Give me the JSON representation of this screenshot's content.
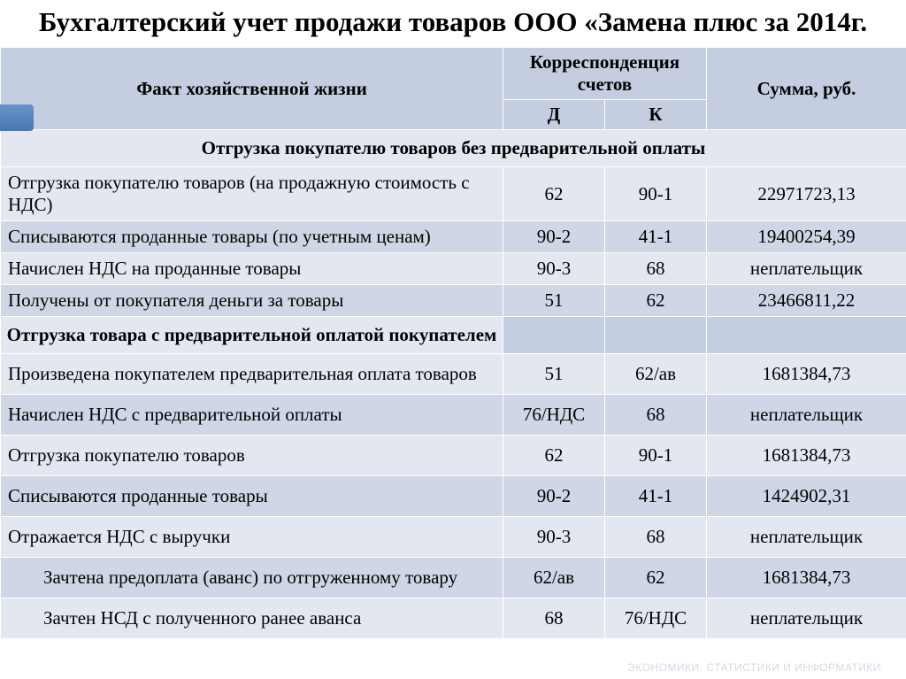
{
  "title": "Бухгалтерский учет продажи товаров ООО «Замена плюс за 2014г.",
  "headers": {
    "fact": "Факт хозяйственной жизни",
    "corr": "Корреспонденция счетов",
    "d": "Д",
    "k": "К",
    "sum": "Сумма, руб."
  },
  "section1": "Отгрузка покупателю товаров без предварительной оплаты",
  "section2": "Отгрузка товара с предварительной оплатой покупателем",
  "rows1": [
    {
      "fact": "Отгрузка покупателю товаров (на продажную стоимость с НДС)",
      "d": "62",
      "k": "90-1",
      "sum": "22971723,13"
    },
    {
      "fact": "Списываются проданные товары (по учетным ценам)",
      "d": "90-2",
      "k": "41-1",
      "sum": "19400254,39"
    },
    {
      "fact": "Начислен НДС на проданные товары",
      "d": "90-3",
      "k": "68",
      "sum": "неплательщик"
    },
    {
      "fact": "Получены от покупателя деньги за товары",
      "d": "51",
      "k": "62",
      "sum": "23466811,22"
    }
  ],
  "rows2": [
    {
      "fact": "Произведена покупателем предварительная оплата товаров",
      "d": "51",
      "k": "62/ав",
      "sum": "1681384,73"
    },
    {
      "fact": "Начислен НДС с предварительной оплаты",
      "d": "76/НДС",
      "k": "68",
      "sum": "неплательщик"
    },
    {
      "fact": "Отгрузка покупателю товаров",
      "d": "62",
      "k": "90-1",
      "sum": "1681384,73"
    },
    {
      "fact": "Списываются проданные товары",
      "d": "90-2",
      "k": "41-1",
      "sum": "1424902,31"
    },
    {
      "fact": "Отражается НДС с выручки",
      "d": "90-3",
      "k": "68",
      "sum": "неплательщик"
    },
    {
      "fact": "Зачтена предоплата (аванс) по отгруженному товару",
      "d": "62/ав",
      "k": "62",
      "sum": "1681384,73",
      "indent": true
    },
    {
      "fact": "Зачтен НСД с полученного ранее аванса",
      "d": "68",
      "k": "76/НДС",
      "sum": "неплательщик",
      "indent": true
    }
  ],
  "footer": "ЭКОНОМИКИ, СТАТИСТИКИ И ИНФОРМАТИКИ"
}
